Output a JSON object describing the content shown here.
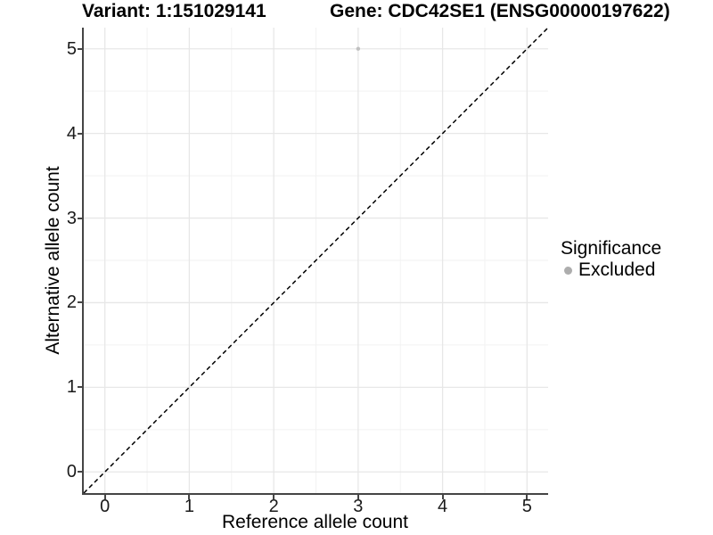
{
  "header": {
    "variant_title": "Variant: 1:151029141",
    "gene_title": "Gene: CDC42SE1 (ENSG00000197622)"
  },
  "axes": {
    "x": {
      "title": "Reference allele count"
    },
    "y": {
      "title": "Alternative allele count"
    }
  },
  "legend": {
    "title": "Significance",
    "items": [
      {
        "label": "Excluded",
        "marker": "circle",
        "color": "#adadad"
      }
    ]
  },
  "colors": {
    "background": "#ffffff",
    "grid_major": "#e7e7e7",
    "grid_minor": "#f2f2f2",
    "axis_line": "#454545",
    "reference_line": "#000000",
    "point": "#c0c0c0"
  },
  "chart_data": {
    "type": "scatter",
    "title": "Variant: 1:151029141   Gene: CDC42SE1 (ENSG00000197622)",
    "xlabel": "Reference allele count",
    "ylabel": "Alternative allele count",
    "xlim": [
      -0.25,
      5.25
    ],
    "ylim": [
      -0.25,
      5.25
    ],
    "x_ticks": [
      0,
      1,
      2,
      3,
      4,
      5
    ],
    "y_ticks": [
      0,
      1,
      2,
      3,
      4,
      5
    ],
    "minor_ticks": [
      0.5,
      1.5,
      2.5,
      3.5,
      4.5
    ],
    "grid": true,
    "legend_position": "right",
    "legend_title": "Significance",
    "series": [
      {
        "name": "Excluded",
        "color": "#c0c0c0",
        "marker": "circle",
        "points": [
          {
            "x": 3,
            "y": 5
          }
        ]
      }
    ],
    "reference_line": {
      "type": "identity",
      "slope": 1,
      "intercept": 0,
      "style": "dashed",
      "color": "#000000"
    }
  }
}
